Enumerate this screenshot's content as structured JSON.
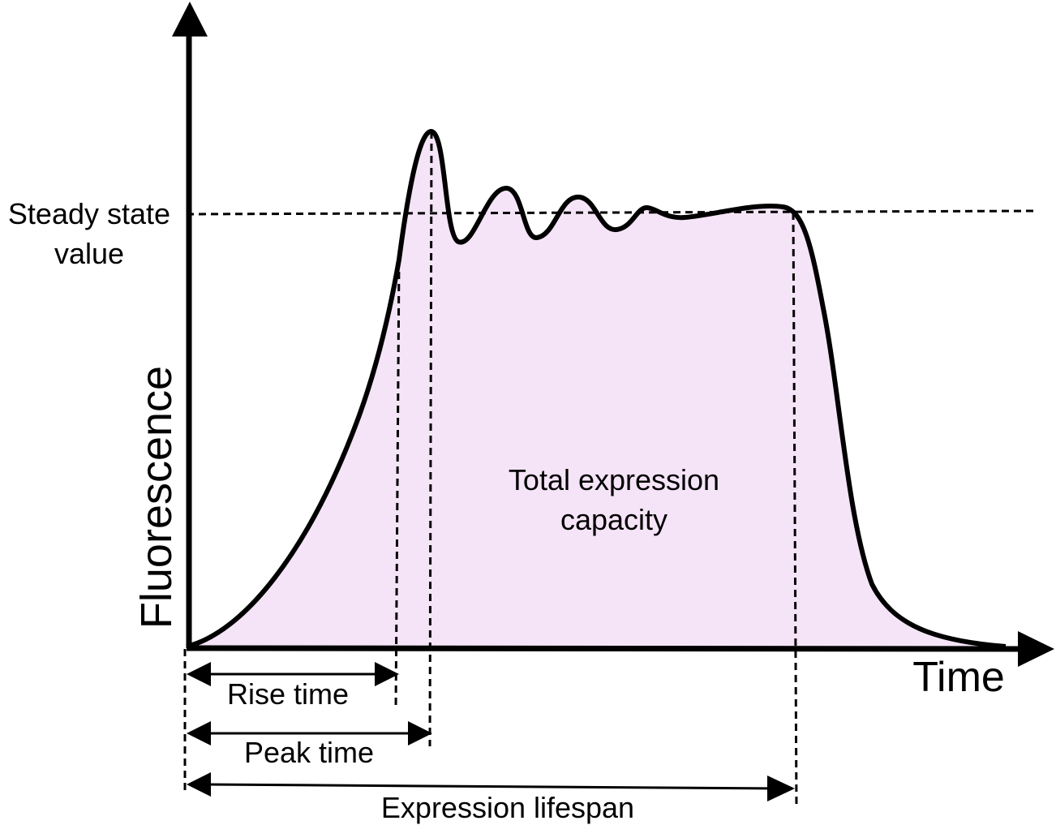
{
  "axes": {
    "y_label": "Fluorescence",
    "x_label": "Time"
  },
  "annotations": {
    "steady_state": [
      "Steady state",
      "value"
    ],
    "area": [
      "Total expression",
      "capacity"
    ],
    "rise_time": "Rise time",
    "peak_time": "Peak time",
    "lifespan": "Expression lifespan"
  }
}
